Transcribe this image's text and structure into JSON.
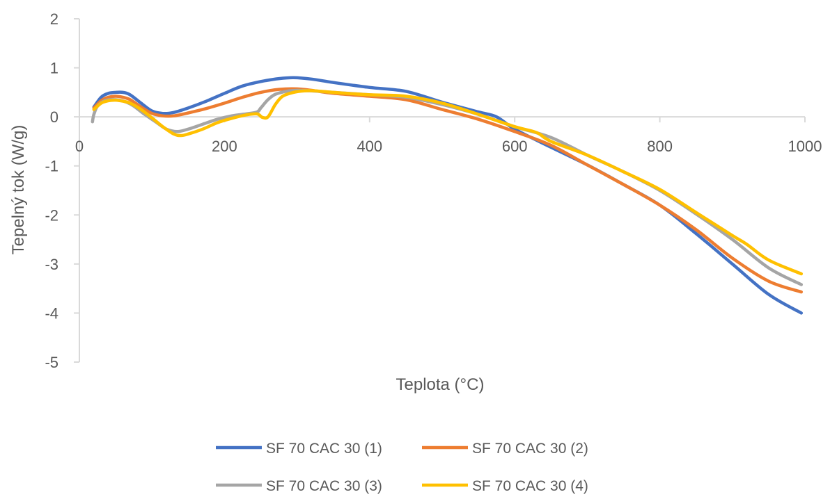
{
  "chart_data": {
    "type": "line",
    "xlabel": "Teplota (°C)",
    "ylabel": "Tepelný tok (W/g)",
    "xlim": [
      0,
      1000
    ],
    "ylim": [
      -5,
      2
    ],
    "x_ticks": [
      "0",
      "200",
      "400",
      "600",
      "800",
      "1000"
    ],
    "y_ticks": [
      "2",
      "1",
      "0",
      "-1",
      "-2",
      "-3",
      "-4",
      "-5"
    ],
    "grid": false,
    "legend_position": "bottom",
    "series": [
      {
        "name": "SF 70 CAC 30 (1)",
        "color": "#4472C4",
        "x": [
          20,
          30,
          40,
          50,
          60,
          70,
          85,
          100,
          115,
          130,
          150,
          175,
          200,
          225,
          250,
          275,
          295,
          320,
          350,
          400,
          450,
          500,
          550,
          575,
          600,
          650,
          700,
          750,
          800,
          850,
          900,
          950,
          995
        ],
        "y": [
          0.2,
          0.4,
          0.48,
          0.5,
          0.5,
          0.45,
          0.28,
          0.12,
          0.07,
          0.09,
          0.18,
          0.32,
          0.48,
          0.63,
          0.72,
          0.78,
          0.8,
          0.77,
          0.7,
          0.6,
          0.52,
          0.3,
          0.1,
          0.0,
          -0.25,
          -0.62,
          -0.98,
          -1.38,
          -1.8,
          -2.38,
          -3.0,
          -3.62,
          -4.0
        ]
      },
      {
        "name": "SF 70 CAC 30 (2)",
        "color": "#ED7D31",
        "x": [
          20,
          30,
          40,
          50,
          60,
          70,
          85,
          100,
          115,
          130,
          150,
          175,
          200,
          225,
          250,
          275,
          300,
          325,
          350,
          400,
          450,
          500,
          550,
          600,
          650,
          700,
          750,
          800,
          850,
          900,
          950,
          995
        ],
        "y": [
          0.18,
          0.33,
          0.4,
          0.42,
          0.4,
          0.35,
          0.2,
          0.07,
          0.02,
          0.02,
          0.08,
          0.17,
          0.28,
          0.4,
          0.5,
          0.56,
          0.57,
          0.53,
          0.48,
          0.42,
          0.35,
          0.15,
          -0.05,
          -0.3,
          -0.58,
          -0.98,
          -1.38,
          -1.8,
          -2.3,
          -2.88,
          -3.35,
          -3.57
        ]
      },
      {
        "name": "SF 70 CAC 30 (3)",
        "color": "#A5A5A5",
        "x": [
          18,
          20,
          25,
          35,
          45,
          55,
          65,
          75,
          90,
          105,
          120,
          135,
          150,
          170,
          190,
          210,
          230,
          245,
          250,
          260,
          270,
          285,
          300,
          320,
          350,
          400,
          450,
          500,
          550,
          600,
          650,
          700,
          750,
          800,
          850,
          900,
          950,
          995
        ],
        "y": [
          -0.1,
          0.05,
          0.22,
          0.33,
          0.35,
          0.34,
          0.3,
          0.22,
          0.05,
          -0.1,
          -0.25,
          -0.3,
          -0.25,
          -0.15,
          -0.05,
          0.02,
          0.06,
          0.1,
          0.18,
          0.35,
          0.46,
          0.52,
          0.54,
          0.53,
          0.5,
          0.45,
          0.4,
          0.25,
          0.05,
          -0.2,
          -0.42,
          -0.78,
          -1.12,
          -1.5,
          -1.98,
          -2.5,
          -3.08,
          -3.42
        ]
      },
      {
        "name": "SF 70 CAC 30 (4)",
        "color": "#FFC000",
        "x": [
          20,
          30,
          40,
          50,
          60,
          70,
          85,
          100,
          115,
          130,
          140,
          150,
          170,
          190,
          210,
          230,
          245,
          252,
          260,
          270,
          280,
          295,
          310,
          325,
          350,
          400,
          450,
          500,
          550,
          600,
          630,
          650,
          700,
          750,
          800,
          850,
          900,
          920,
          950,
          995
        ],
        "y": [
          0.15,
          0.28,
          0.33,
          0.34,
          0.32,
          0.28,
          0.15,
          -0.02,
          -0.2,
          -0.35,
          -0.38,
          -0.35,
          -0.25,
          -0.12,
          -0.03,
          0.04,
          0.06,
          -0.01,
          0.0,
          0.25,
          0.42,
          0.5,
          0.53,
          0.53,
          0.5,
          0.45,
          0.42,
          0.28,
          0.05,
          -0.2,
          -0.32,
          -0.5,
          -0.78,
          -1.12,
          -1.48,
          -1.95,
          -2.42,
          -2.6,
          -2.92,
          -3.2
        ]
      }
    ]
  }
}
